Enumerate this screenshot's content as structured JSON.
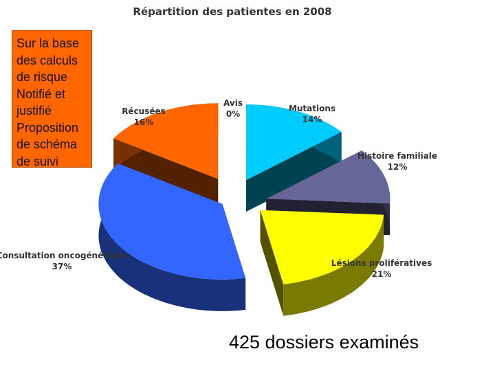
{
  "note": {
    "lines": [
      "Sur la base",
      "des calculs",
      "de risque",
      "Notifié et",
      "justifié",
      "Proposition",
      "de schéma",
      "de suivi"
    ],
    "fill": "#ff6600"
  },
  "footer_text": "425 dossiers examinés",
  "chart_data": {
    "type": "pie",
    "style": "3d-exploded",
    "title": "Répartition des patientes en 2008",
    "slices": [
      {
        "name": "Avis",
        "value": 0,
        "label": "0%",
        "color": "#00b0f0"
      },
      {
        "name": "Mutations",
        "value": 14,
        "label": "14%",
        "color": "#00ccff"
      },
      {
        "name": "Histoire familiale",
        "value": 12,
        "label": "12%",
        "color": "#666699"
      },
      {
        "name": "Lésions prolifératives",
        "value": 21,
        "label": "21%",
        "color": "#ffff00"
      },
      {
        "name": "Consultation oncogénétique",
        "value": 37,
        "label": "37%",
        "color": "#3366ff"
      },
      {
        "name": "Récusées",
        "value": 16,
        "label": "16%",
        "color": "#ff6600"
      }
    ],
    "legend": "none"
  }
}
